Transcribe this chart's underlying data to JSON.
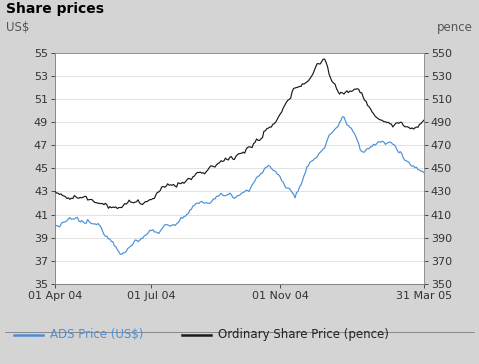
{
  "title": "Share prices",
  "left_ylabel": "US$",
  "right_ylabel": "pence",
  "left_ylim": [
    35,
    55
  ],
  "right_ylim": [
    350,
    550
  ],
  "left_yticks": [
    35,
    37,
    39,
    41,
    43,
    45,
    47,
    49,
    51,
    53,
    55
  ],
  "right_yticks": [
    350,
    370,
    390,
    410,
    430,
    450,
    470,
    490,
    510,
    530,
    550
  ],
  "ads_color": "#4a90d9",
  "ordinary_color": "#1a1a1a",
  "header_bg": "#d4d4d4",
  "plot_bg": "#ffffff",
  "legend_ads": "ADS Price (US$)",
  "legend_ordinary": "Ordinary Share Price (pence)",
  "xtick_labels": [
    "01 Apr 04",
    "01 Jul 04",
    "01 Nov 04",
    "31 Mar 05"
  ],
  "xtick_positions": [
    0,
    65,
    152,
    249
  ],
  "title_fontsize": 10,
  "label_fontsize": 8.5,
  "tick_fontsize": 8
}
